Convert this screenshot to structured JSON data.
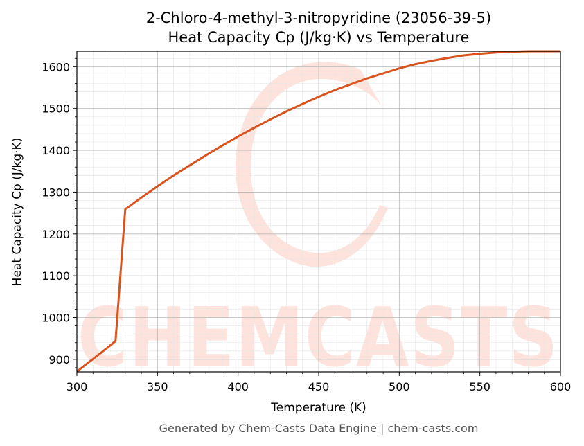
{
  "chart_data": {
    "type": "line",
    "title": "2-Chloro-4-methyl-3-nitropyridine (23056-39-5)",
    "subtitle": "Heat Capacity Cp (J/kg·K) vs Temperature",
    "xlabel": "Temperature (K)",
    "ylabel": "Heat Capacity Cp (J/kg·K)",
    "xlim": [
      300,
      600
    ],
    "ylim": [
      870,
      1637
    ],
    "xticks": [
      300,
      350,
      400,
      450,
      500,
      550,
      600
    ],
    "yticks": [
      900,
      1000,
      1100,
      1200,
      1300,
      1400,
      1500,
      1600
    ],
    "grid": true,
    "line_color": "#d9531e",
    "series": [
      {
        "x": [
          300,
          310,
          320,
          324,
          330,
          340,
          350,
          360,
          370,
          380,
          390,
          400,
          410,
          420,
          430,
          440,
          450,
          460,
          470,
          480,
          490,
          500,
          510,
          520,
          530,
          540,
          550,
          560,
          570,
          580,
          590,
          600
        ],
        "values": [
          871,
          901,
          931,
          944,
          1259,
          1287,
          1314,
          1340,
          1364,
          1388,
          1411,
          1433,
          1454,
          1474,
          1493,
          1511,
          1528,
          1544,
          1558,
          1572,
          1584,
          1596,
          1606,
          1614,
          1621,
          1627,
          1631,
          1634,
          1636,
          1637,
          1637,
          1637
        ]
      }
    ]
  },
  "watermark": {
    "text": "CHEMCASTS",
    "color": "#fde3dc"
  },
  "footer": "Generated by Chem-Casts Data Engine | chem-casts.com"
}
